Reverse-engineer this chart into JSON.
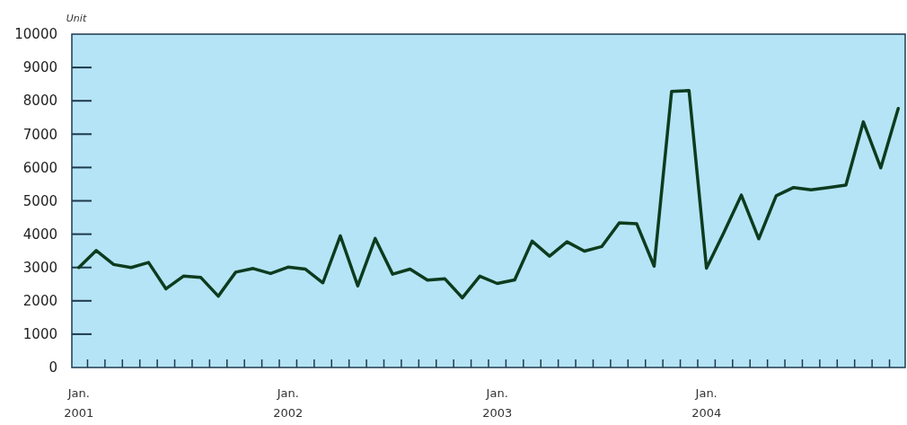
{
  "chart_data": {
    "type": "line",
    "ylabel": "Unit",
    "categories": [
      "Jan.\n2001",
      null,
      null,
      null,
      null,
      null,
      null,
      null,
      null,
      null,
      null,
      null,
      "Jan.\n2002",
      null,
      null,
      null,
      null,
      null,
      null,
      null,
      null,
      null,
      null,
      null,
      "Jan.\n2003",
      null,
      null,
      null,
      null,
      null,
      null,
      null,
      null,
      null,
      null,
      null,
      "Jan.\n2004",
      null,
      null,
      null,
      null,
      null,
      null,
      null,
      null,
      null,
      null,
      null
    ],
    "series": [
      {
        "color": "#0d3b1e",
        "values": [
          3000,
          3510,
          3090,
          3000,
          3150,
          2360,
          2740,
          2700,
          2140,
          2860,
          2970,
          2820,
          3010,
          2950,
          2540,
          3950,
          2450,
          3870,
          2800,
          2950,
          2620,
          2660,
          2090,
          2740,
          2520,
          2630,
          3790,
          3340,
          3770,
          3490,
          3630,
          4340,
          4310,
          3040,
          8280,
          8310,
          2980,
          4050,
          5170,
          3860,
          5150,
          5400,
          5330,
          5400,
          5470,
          7370,
          5990,
          7770
        ]
      }
    ],
    "ylim": [
      0,
      10000
    ],
    "yticks": [
      0,
      1000,
      2000,
      3000,
      4000,
      5000,
      6000,
      7000,
      8000,
      9000,
      10000
    ],
    "grid": false,
    "marker": "none",
    "line_style": "solid"
  }
}
